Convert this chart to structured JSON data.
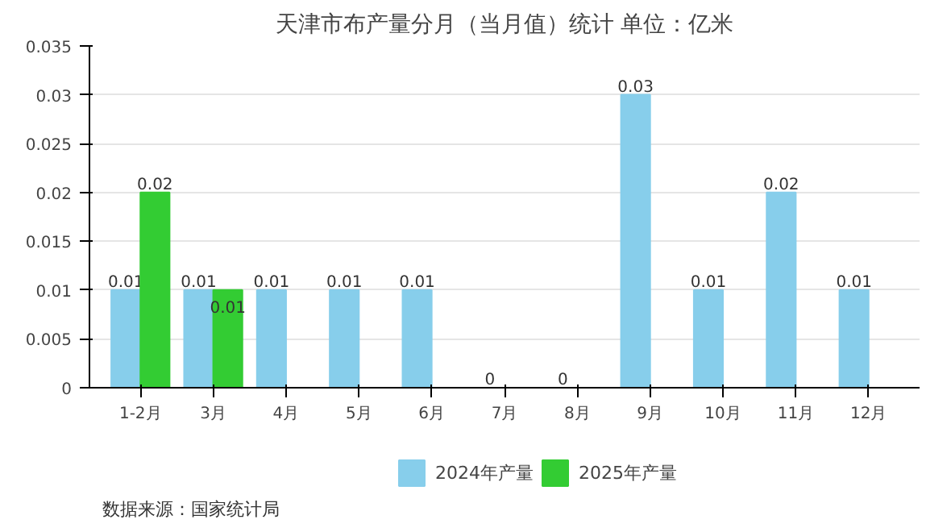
{
  "chart_data": {
    "type": "bar",
    "title": "天津市布产量分月（当月值）统计 单位：亿米",
    "categories": [
      "1-2月",
      "3月",
      "4月",
      "5月",
      "6月",
      "7月",
      "8月",
      "9月",
      "10月",
      "11月",
      "12月"
    ],
    "series": [
      {
        "name": "2024年产量",
        "color": "#87ceeb",
        "values": [
          0.01,
          0.01,
          0.01,
          0.01,
          0.01,
          0,
          0,
          0.03,
          0.01,
          0.02,
          0.01
        ]
      },
      {
        "name": "2025年产量",
        "color": "#33cc33",
        "values": [
          0.02,
          0.01,
          null,
          null,
          null,
          null,
          null,
          null,
          null,
          null,
          null
        ]
      }
    ],
    "ylim": [
      0,
      0.035
    ],
    "yticks": [
      0,
      0.005,
      0.01,
      0.015,
      0.02,
      0.025,
      0.03,
      0.035
    ],
    "grid": "y",
    "legend": "bottom",
    "data_labels": true,
    "annotations": [
      "数据来源：国家统计局"
    ]
  }
}
